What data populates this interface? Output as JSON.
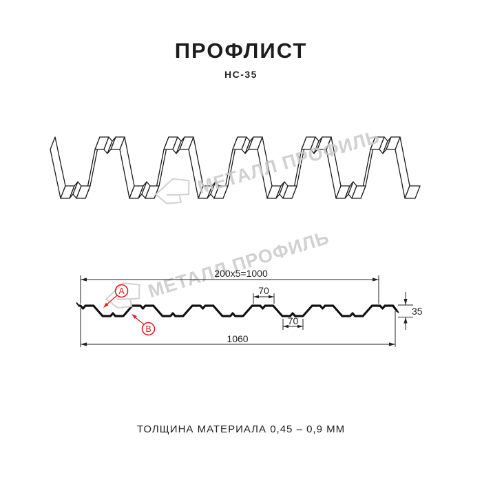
{
  "header": {
    "title": "ПРОФЛИСТ",
    "subtitle": "НС-35"
  },
  "watermark": {
    "text": "МЕТАЛЛ ПРОФИЛЬ"
  },
  "dimensions": {
    "coverage_width": "200x5=1000",
    "crest_top_width": "70",
    "valley_bottom_width": "70",
    "profile_height": "35",
    "overall_width": "1060"
  },
  "markers": {
    "a": "А",
    "b": "В"
  },
  "footer": {
    "note": "ТОЛЩИНА МАТЕРИАЛА 0,45 – 0,9 ММ"
  },
  "colors": {
    "accent": "#e31e24",
    "line": "#1c1c1c",
    "watermark": "#c9c9c9"
  }
}
